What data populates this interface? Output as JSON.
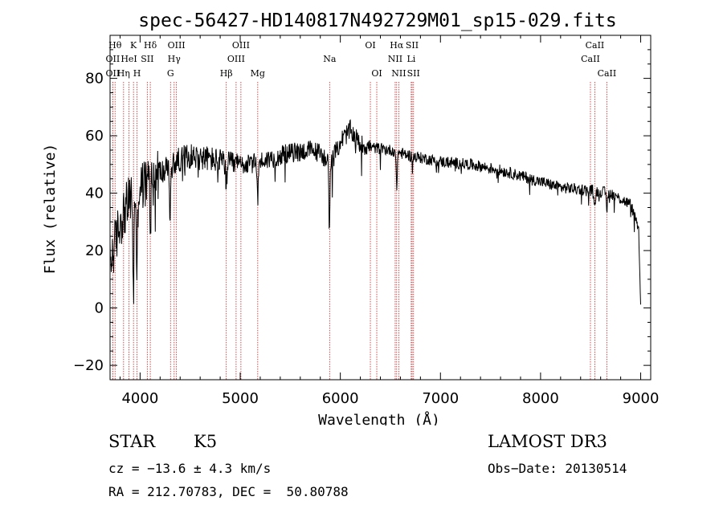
{
  "chart_data": {
    "type": "line",
    "title": "spec-56427-HD140817N492729M01_sp15-029.fits",
    "xlabel": "Wavelength (Å)",
    "ylabel": "Flux (relative)",
    "xlim": [
      3700,
      9100
    ],
    "ylim": [
      -25,
      95
    ],
    "xticks": [
      4000,
      5000,
      6000,
      7000,
      8000,
      9000
    ],
    "yticks": [
      -20,
      0,
      20,
      40,
      60,
      80
    ],
    "continuum": {
      "x": [
        3700,
        3800,
        3900,
        4000,
        4100,
        4200,
        4300,
        4400,
        4500,
        4700,
        4900,
        5100,
        5300,
        5500,
        5700,
        5800,
        5900,
        6000,
        6100,
        6200,
        6300,
        6500,
        6700,
        7000,
        7300,
        7600,
        7900,
        8200,
        8500,
        8700,
        8900,
        8980,
        9000
      ],
      "y": [
        15,
        30,
        38,
        42,
        45,
        47,
        49,
        52,
        53,
        52,
        50,
        50,
        52,
        54,
        55,
        54,
        50,
        58,
        62,
        57,
        56,
        55,
        53,
        51,
        50,
        48,
        45,
        42,
        41,
        40,
        36,
        28,
        0
      ]
    },
    "absorption_dips": [
      {
        "x": 3934,
        "depth": 35
      },
      {
        "x": 3969,
        "depth": 30
      },
      {
        "x": 4102,
        "depth": 14
      },
      {
        "x": 4300,
        "depth": 18
      },
      {
        "x": 4861,
        "depth": 8
      },
      {
        "x": 5175,
        "depth": 12
      },
      {
        "x": 5890,
        "depth": 20
      },
      {
        "x": 6563,
        "depth": 12
      },
      {
        "x": 8542,
        "depth": 6
      },
      {
        "x": 8662,
        "depth": 6
      }
    ],
    "lines": [
      {
        "label": "Hθ",
        "x": 3750,
        "row": 0
      },
      {
        "label": "OII",
        "x": 3727,
        "row": 1
      },
      {
        "label": "OII",
        "x": 3727,
        "row": 2
      },
      {
        "label": "K",
        "x": 3934,
        "row": 0
      },
      {
        "label": "HeI",
        "x": 3889,
        "row": 1
      },
      {
        "label": "Hη",
        "x": 3835,
        "row": 2
      },
      {
        "label": "H",
        "x": 3969,
        "row": 2
      },
      {
        "label": "Hδ",
        "x": 4102,
        "row": 0
      },
      {
        "label": "SII",
        "x": 4072,
        "row": 1
      },
      {
        "label": "OIII",
        "x": 4363,
        "row": 0
      },
      {
        "label": "Hγ",
        "x": 4340,
        "row": 1
      },
      {
        "label": "G",
        "x": 4304,
        "row": 2
      },
      {
        "label": "Hβ",
        "x": 4861,
        "row": 2
      },
      {
        "label": "OIII",
        "x": 5007,
        "row": 0
      },
      {
        "label": "OIII",
        "x": 4959,
        "row": 1
      },
      {
        "label": "Mg",
        "x": 5175,
        "row": 2
      },
      {
        "label": "Na",
        "x": 5893,
        "row": 1
      },
      {
        "label": "OI",
        "x": 6300,
        "row": 0
      },
      {
        "label": "OI",
        "x": 6364,
        "row": 2
      },
      {
        "label": "Hα",
        "x": 6563,
        "row": 0
      },
      {
        "label": "NII",
        "x": 6548,
        "row": 1
      },
      {
        "label": "NII",
        "x": 6584,
        "row": 2
      },
      {
        "label": "SII",
        "x": 6717,
        "row": 0
      },
      {
        "label": "Li",
        "x": 6708,
        "row": 1
      },
      {
        "label": "SII",
        "x": 6731,
        "row": 2
      },
      {
        "label": "CaII",
        "x": 8542,
        "row": 0
      },
      {
        "label": "CaII",
        "x": 8498,
        "row": 1
      },
      {
        "label": "CaII",
        "x": 8662,
        "row": 2
      }
    ]
  },
  "info": {
    "class": "STAR",
    "subclass": "K5",
    "survey": "LAMOST DR3",
    "cz": "cz = −13.6 ± 4.3 km/s",
    "obs_date": "Obs−Date: 20130514",
    "coords": "RA = 212.70783, DEC =  50.80788"
  },
  "colors": {
    "line_marker": "#cc2222",
    "spectrum": "#000000"
  }
}
